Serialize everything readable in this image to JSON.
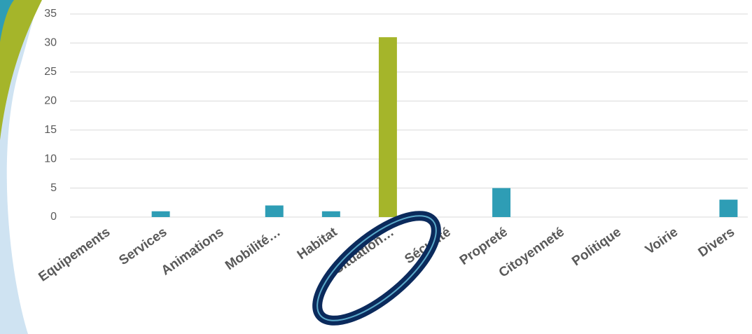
{
  "chart_data": {
    "type": "bar",
    "categories": [
      "Equipements",
      "Services",
      "Animations",
      "Mobilité…",
      "Habitat",
      "Situation…",
      "Sécurité",
      "Propreté",
      "Citoyenneté",
      "Politique",
      "Voirie",
      "Divers"
    ],
    "values": [
      0,
      1,
      0,
      2,
      1,
      31,
      0,
      5,
      0,
      0,
      0,
      3
    ],
    "colors": [
      "#2e9db5",
      "#2e9db5",
      "#2e9db5",
      "#2e9db5",
      "#2e9db5",
      "#a5b52a",
      "#2e9db5",
      "#2e9db5",
      "#2e9db5",
      "#2e9db5",
      "#2e9db5",
      "#2e9db5"
    ],
    "ylim": [
      0,
      35
    ],
    "yticks": [
      0,
      5,
      10,
      15,
      20,
      25,
      30,
      35
    ],
    "grid": true
  }
}
